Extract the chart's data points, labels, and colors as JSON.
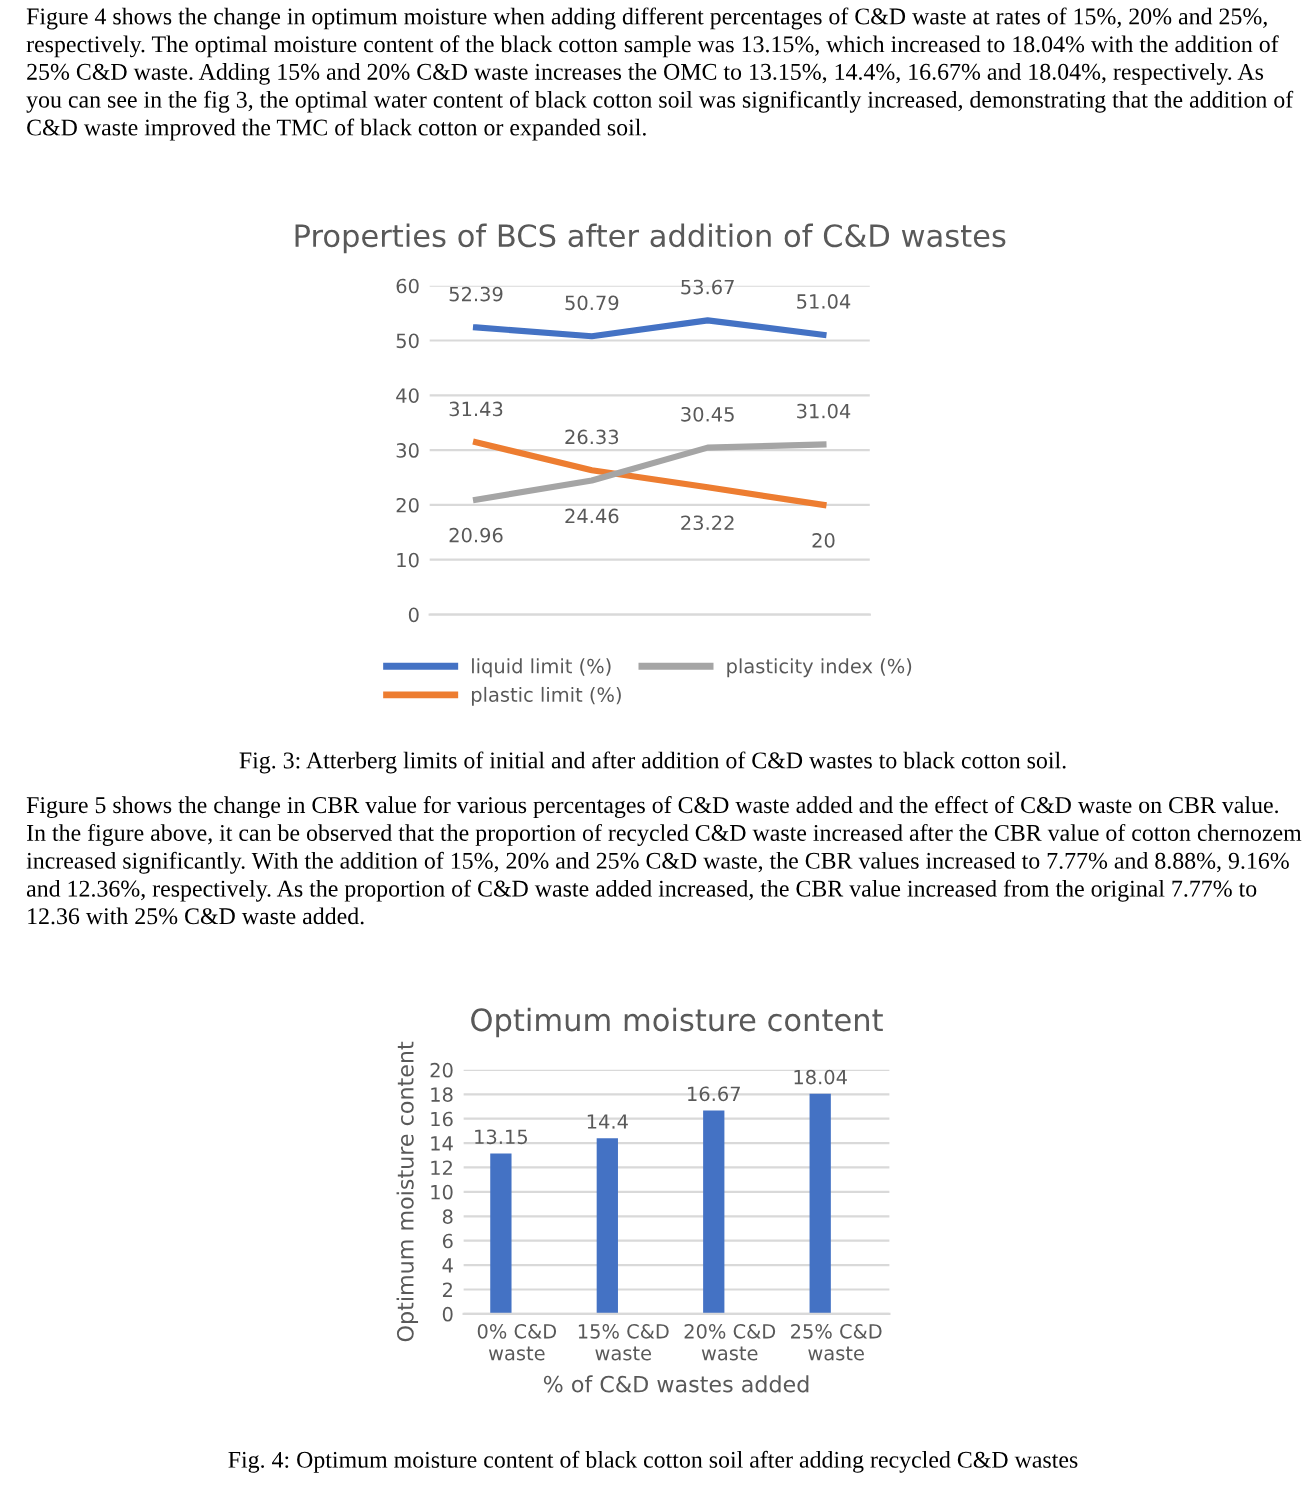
{
  "chart_data": [
    {
      "type": "line",
      "title": "Properties of BCS after addition of C&D wastes",
      "categories": [
        null,
        null,
        null,
        null
      ],
      "series": [
        {
          "name": "liquid limit (%)",
          "color": "#4472c4",
          "values": [
            52.39,
            50.79,
            53.67,
            51.04
          ]
        },
        {
          "name": "plastic limit (%)",
          "color": "#ed7d31",
          "values": [
            31.43,
            26.33,
            23.22,
            20
          ]
        },
        {
          "name": "plasticity index (%)",
          "color": "#a5a5a5",
          "values": [
            20.96,
            24.46,
            30.45,
            31.04
          ]
        }
      ],
      "ylim": [
        0,
        60
      ],
      "yticks": [
        0,
        10,
        20,
        30,
        40,
        50,
        60
      ],
      "grid": "y",
      "legend": "bottom",
      "data_labels": true,
      "tick_labels": "y",
      "annotations": [
        "Figure 4 shows the change in optimum moisture when adding different percentages of C&D waste at rates of 15%, 20% and 25%, respectively. The optimal moisture content of the black cotton sample was 13.15%, which increased to 18.04% with the addition of 25% C&D waste. Adding 15% and 20% C&D waste increases the OMC to 13.15%, 14.4%, 16.67% and 18.04%, respectively. As you can see in the fig 3, the optimal water content of black cotton soil was significantly increased, demonstrating that the addition of C&D waste improved the TMC of black cotton or expanded soil.",
        "Fig. 3: Atterberg limits of initial and after addition of C&D wastes to black cotton soil."
      ]
    },
    {
      "type": "bar",
      "title": "Optimum moisture content",
      "xlabel": "% of C&D wastes added",
      "ylabel": "Optimum moisture content",
      "categories": [
        "0% C&D\nwaste",
        "15% C&D\nwaste",
        "20% C&D\nwaste",
        "25% C&D\nwaste"
      ],
      "values": [
        13.15,
        14.4,
        16.67,
        18.04
      ],
      "color": "#4472c4",
      "ylim": [
        0,
        20
      ],
      "yticks": [
        0,
        2,
        4,
        6,
        8,
        10,
        12,
        14,
        16,
        18,
        20
      ],
      "grid": "y",
      "data_labels": true,
      "annotations": [
        "Figure 5 shows the change in CBR value for various percentages of C&D waste added and the effect of C&D waste on CBR value. In the figure above, it can be observed that the proportion of recycled C&D waste increased after the CBR value of cotton chernozem increased significantly. With the addition of 15%, 20% and 25% C&D waste, the CBR values increased to 7.77% and 8.88%, 9.16% and 12.36%, respectively. As the proportion of C&D waste added increased, the CBR value increased from the original 7.77% to 12.36 with 25% C&D waste added.",
        "Fig. 4: Optimum moisture content of black cotton soil after adding recycled C&D wastes"
      ]
    }
  ]
}
